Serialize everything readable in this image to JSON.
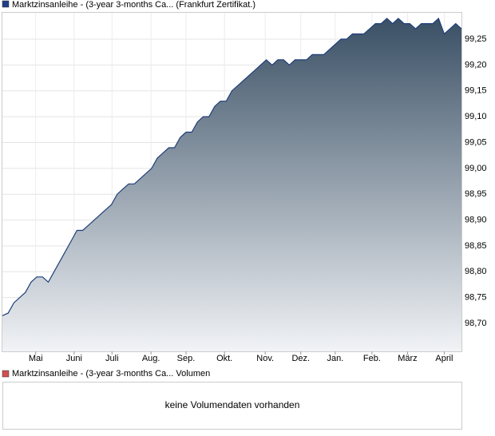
{
  "chart_data": [
    {
      "type": "area",
      "legend": "Marktzinsanleihe - (3-year 3-months Ca... (Frankfurt Zertifikat.)",
      "legend_color": "#1f3f8a",
      "color": "#1f3f7a",
      "gradient": [
        "#3a5065",
        "#f1f3f6"
      ],
      "values": [
        98.715,
        98.72,
        98.74,
        98.75,
        98.76,
        98.78,
        98.79,
        98.79,
        98.78,
        98.8,
        98.82,
        98.84,
        98.86,
        98.88,
        98.88,
        98.89,
        98.9,
        98.91,
        98.92,
        98.93,
        98.95,
        98.96,
        98.97,
        98.97,
        98.98,
        98.99,
        99.0,
        99.02,
        99.03,
        99.04,
        99.04,
        99.06,
        99.07,
        99.07,
        99.09,
        99.1,
        99.1,
        99.12,
        99.13,
        99.13,
        99.15,
        99.16,
        99.17,
        99.18,
        99.19,
        99.2,
        99.21,
        99.2,
        99.21,
        99.21,
        99.2,
        99.21,
        99.21,
        99.21,
        99.22,
        99.22,
        99.22,
        99.23,
        99.24,
        99.25,
        99.25,
        99.26,
        99.26,
        99.26,
        99.27,
        99.28,
        99.28,
        99.29,
        99.28,
        99.29,
        99.28,
        99.28,
        99.27,
        99.28,
        99.28,
        99.28,
        99.29,
        99.26,
        99.27,
        99.28,
        99.27
      ],
      "xlim": [
        0,
        80
      ],
      "xticks": [
        {
          "value": 5.8,
          "label": "Mai"
        },
        {
          "value": 12.5,
          "label": "Juni"
        },
        {
          "value": 19.1,
          "label": "Juli"
        },
        {
          "value": 25.9,
          "label": "Aug."
        },
        {
          "value": 32.0,
          "label": "Sep."
        },
        {
          "value": 38.7,
          "label": "Okt."
        },
        {
          "value": 45.8,
          "label": "Nov."
        },
        {
          "value": 52.0,
          "label": "Dez."
        },
        {
          "value": 58.0,
          "label": "Jan."
        },
        {
          "value": 64.4,
          "label": "Feb."
        },
        {
          "value": 70.6,
          "label": "März"
        },
        {
          "value": 77.0,
          "label": "April"
        }
      ],
      "ylim": [
        98.646,
        99.301
      ],
      "yticks": [
        {
          "value": 98.7,
          "label": "98,70"
        },
        {
          "value": 98.75,
          "label": "98,75"
        },
        {
          "value": 98.8,
          "label": "98,80"
        },
        {
          "value": 98.85,
          "label": "98,85"
        },
        {
          "value": 98.9,
          "label": "98,90"
        },
        {
          "value": 98.95,
          "label": "98,95"
        },
        {
          "value": 99.0,
          "label": "99,00"
        },
        {
          "value": 99.05,
          "label": "99,05"
        },
        {
          "value": 99.1,
          "label": "99,10"
        },
        {
          "value": 99.15,
          "label": "99,15"
        },
        {
          "value": 99.2,
          "label": "99,20"
        },
        {
          "value": 99.25,
          "label": "99,25"
        }
      ],
      "grid": true
    },
    {
      "type": "bar",
      "legend": "Marktzinsanleihe - (3-year 3-months Ca... Volumen",
      "legend_color": "#d05050",
      "annotation": "keine Volumendaten vorhanden"
    }
  ]
}
